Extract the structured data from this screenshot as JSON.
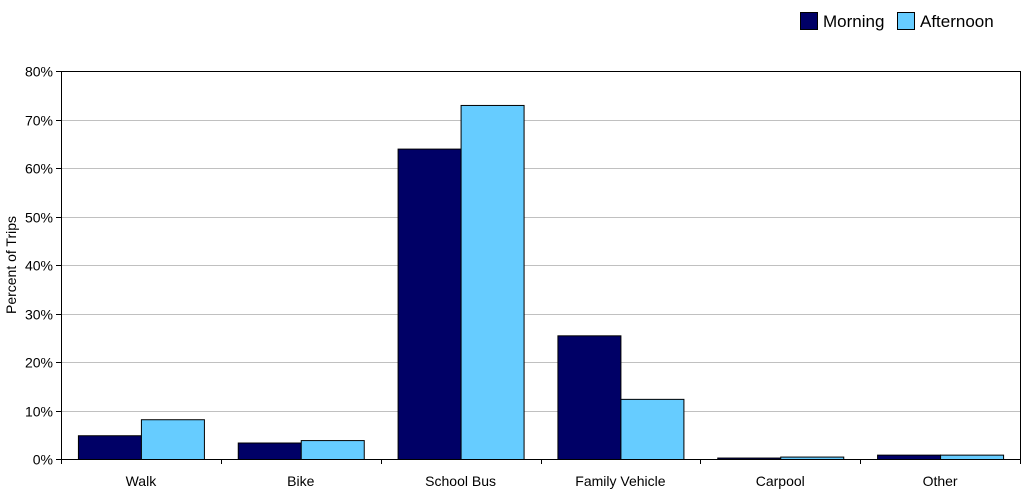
{
  "chart_data": {
    "type": "bar",
    "title": "",
    "xlabel": "",
    "ylabel": "Percent of Trips",
    "ylim": [
      0,
      80
    ],
    "ytick_labels": [
      "0%",
      "10%",
      "20%",
      "30%",
      "40%",
      "50%",
      "60%",
      "70%",
      "80%"
    ],
    "grid": true,
    "legend_position": "top-right",
    "categories": [
      "Walk",
      "Bike",
      "School Bus",
      "Family Vehicle",
      "Carpool",
      "Other"
    ],
    "series": [
      {
        "name": "Morning",
        "color": "#000066",
        "values": [
          4.9,
          3.4,
          64,
          25.5,
          0.3,
          0.9
        ]
      },
      {
        "name": "Afternoon",
        "color": "#66CCFF",
        "values": [
          8.2,
          3.9,
          73,
          12.4,
          0.5,
          0.9
        ]
      }
    ]
  }
}
